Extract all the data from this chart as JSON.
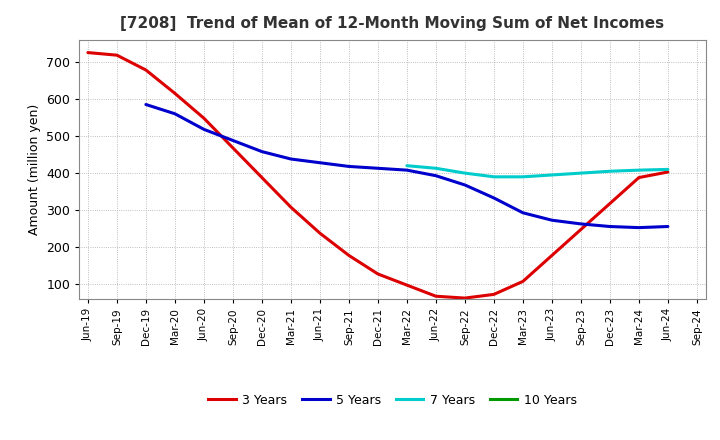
{
  "title": "[7208]  Trend of Mean of 12-Month Moving Sum of Net Incomes",
  "ylabel": "Amount (million yen)",
  "background_color": "#ffffff",
  "plot_bg_color": "#ffffff",
  "grid_color": "#aaaaaa",
  "ylim": [
    60,
    760
  ],
  "yticks": [
    100,
    200,
    300,
    400,
    500,
    600,
    700
  ],
  "x_labels": [
    "Jun-19",
    "Sep-19",
    "Dec-19",
    "Mar-20",
    "Jun-20",
    "Sep-20",
    "Dec-20",
    "Mar-21",
    "Jun-21",
    "Sep-21",
    "Dec-21",
    "Mar-22",
    "Jun-22",
    "Sep-22",
    "Dec-22",
    "Mar-23",
    "Jun-23",
    "Sep-23",
    "Dec-23",
    "Mar-24",
    "Jun-24",
    "Sep-24"
  ],
  "series": {
    "3 Years": {
      "color": "#dd0000",
      "linewidth": 2.2,
      "y": [
        725,
        718,
        678,
        615,
        548,
        468,
        388,
        308,
        238,
        178,
        128,
        98,
        68,
        63,
        73,
        108,
        178,
        248,
        318,
        388,
        403,
        null
      ]
    },
    "5 Years": {
      "color": "#0000cc",
      "linewidth": 2.2,
      "y": [
        null,
        null,
        585,
        560,
        518,
        488,
        458,
        438,
        428,
        418,
        413,
        408,
        393,
        368,
        333,
        293,
        273,
        263,
        256,
        253,
        256,
        null
      ]
    },
    "7 Years": {
      "color": "#00cccc",
      "linewidth": 2.2,
      "y": [
        null,
        null,
        null,
        null,
        null,
        null,
        null,
        null,
        null,
        null,
        null,
        420,
        413,
        400,
        390,
        390,
        395,
        400,
        405,
        408,
        410,
        null
      ]
    },
    "10 Years": {
      "color": "#009900",
      "linewidth": 2.2,
      "y": [
        null,
        null,
        null,
        null,
        null,
        null,
        null,
        null,
        null,
        null,
        null,
        null,
        null,
        null,
        null,
        null,
        null,
        null,
        null,
        null,
        null,
        null
      ]
    }
  },
  "legend_entries": [
    "3 Years",
    "5 Years",
    "7 Years",
    "10 Years"
  ],
  "legend_colors": [
    "#dd0000",
    "#0000cc",
    "#00cccc",
    "#009900"
  ]
}
